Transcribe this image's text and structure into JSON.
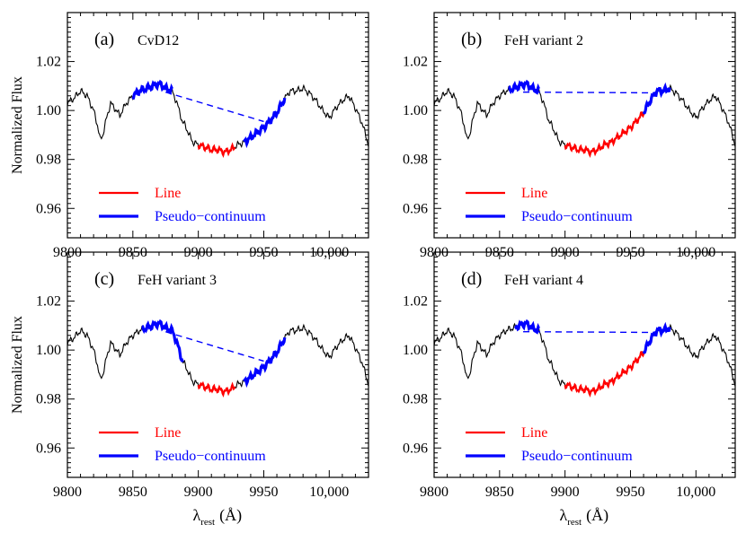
{
  "figure": {
    "xlabel_symbol": "λ",
    "xlabel_sub": "rest",
    "xlabel_unit": "(Å)",
    "ylabel": "Normalized  Flux",
    "colors": {
      "spectrum": "#000000",
      "line": "#ff0000",
      "pseudo_continuum": "#0000ff",
      "continuum_fit": "#0000ff"
    },
    "legend": {
      "line_label": "Line",
      "pseudo_label": "Pseudo−continuum"
    }
  },
  "chart_data": [
    {
      "panel_label": "(a)",
      "title": "CvD12",
      "type": "line",
      "xlim": [
        9800,
        10030
      ],
      "ylim": [
        0.948,
        1.04
      ],
      "xticks": [
        9800,
        9850,
        9900,
        9950,
        10000
      ],
      "xticklabels": [
        "9800",
        "9850",
        "9900",
        "9950",
        "10,000"
      ],
      "yticks": [
        0.96,
        0.98,
        1.0,
        1.02
      ],
      "yticklabels": [
        "0.96",
        "0.98",
        "1.00",
        "1.02"
      ],
      "line_region": [
        9900,
        9928
      ],
      "pseudo_continuum_regions": [
        [
          9850,
          9880
        ],
        [
          9935,
          9966
        ]
      ],
      "continuum_fit": {
        "x": [
          9875,
          9950
        ],
        "y": [
          1.0075,
          0.9955
        ]
      },
      "legend": [
        "Line",
        "Pseudo−continuum"
      ]
    },
    {
      "panel_label": "(b)",
      "title": "FeH variant 2",
      "type": "line",
      "xlim": [
        9800,
        10030
      ],
      "ylim": [
        0.948,
        1.04
      ],
      "xticks": [
        9800,
        9850,
        9900,
        9950,
        10000
      ],
      "xticklabels": [
        "9800",
        "9850",
        "9900",
        "9950",
        "10,000"
      ],
      "yticks": [
        0.96,
        0.98,
        1.0,
        1.02
      ],
      "yticklabels": [
        "0.96",
        "0.98",
        "1.00",
        "1.02"
      ],
      "line_region": [
        9900,
        9960
      ],
      "pseudo_continuum_regions": [
        [
          9857,
          9880
        ],
        [
          9960,
          9980
        ]
      ],
      "continuum_fit": {
        "x": [
          9868,
          9970
        ],
        "y": [
          1.0075,
          1.0072
        ]
      },
      "legend": [
        "Line",
        "Pseudo−continuum"
      ]
    },
    {
      "panel_label": "(c)",
      "title": "FeH variant 3",
      "type": "line",
      "xlim": [
        9800,
        10030
      ],
      "ylim": [
        0.948,
        1.04
      ],
      "xticks": [
        9800,
        9850,
        9900,
        9950,
        10000
      ],
      "xticklabels": [
        "9800",
        "9850",
        "9900",
        "9950",
        "10,000"
      ],
      "yticks": [
        0.96,
        0.98,
        1.0,
        1.02
      ],
      "yticklabels": [
        "0.96",
        "0.98",
        "1.00",
        "1.02"
      ],
      "line_region": [
        9900,
        9928
      ],
      "pseudo_continuum_regions": [
        [
          9857,
          9888
        ],
        [
          9935,
          9966
        ]
      ],
      "continuum_fit": {
        "x": [
          9875,
          9950
        ],
        "y": [
          1.0075,
          0.9955
        ]
      },
      "legend": [
        "Line",
        "Pseudo−continuum"
      ]
    },
    {
      "panel_label": "(d)",
      "title": "FeH variant 4",
      "type": "line",
      "xlim": [
        9800,
        10030
      ],
      "ylim": [
        0.948,
        1.04
      ],
      "xticks": [
        9800,
        9850,
        9900,
        9950,
        10000
      ],
      "xticklabels": [
        "9800",
        "9850",
        "9900",
        "9950",
        "10,000"
      ],
      "yticks": [
        0.96,
        0.98,
        1.0,
        1.02
      ],
      "yticklabels": [
        "0.96",
        "0.98",
        "1.00",
        "1.02"
      ],
      "line_region": [
        9900,
        9960
      ],
      "pseudo_continuum_regions": [
        [
          9862,
          9880
        ],
        [
          9960,
          9980
        ]
      ],
      "continuum_fit": {
        "x": [
          9868,
          9970
        ],
        "y": [
          1.0075,
          1.0072
        ]
      },
      "legend": [
        "Line",
        "Pseudo−continuum"
      ]
    }
  ],
  "spectrum": {
    "x": [
      9800,
      9805,
      9810,
      9815,
      9820,
      9823,
      9825,
      9827,
      9830,
      9833,
      9836,
      9840,
      9845,
      9850,
      9855,
      9860,
      9865,
      9870,
      9875,
      9880,
      9883,
      9886,
      9888,
      9890,
      9893,
      9896,
      9900,
      9905,
      9910,
      9915,
      9920,
      9925,
      9930,
      9935,
      9940,
      9945,
      9950,
      9955,
      9960,
      9965,
      9970,
      9975,
      9980,
      9985,
      9990,
      9995,
      10000,
      10005,
      10010,
      10015,
      10020,
      10025,
      10030
    ],
    "y": [
      1.003,
      1.005,
      1.008,
      1.006,
      1.0,
      0.994,
      0.988,
      0.99,
      0.997,
      1.003,
      1.001,
      0.998,
      1.003,
      1.006,
      1.008,
      1.009,
      1.01,
      1.011,
      1.009,
      1.008,
      1.004,
      0.999,
      0.995,
      0.994,
      0.99,
      0.987,
      0.986,
      0.985,
      0.984,
      0.984,
      0.983,
      0.984,
      0.986,
      0.987,
      0.989,
      0.991,
      0.993,
      0.996,
      0.999,
      1.004,
      1.008,
      1.008,
      1.009,
      1.007,
      1.004,
      1.0,
      0.997,
      1.001,
      1.004,
      1.006,
      1.001,
      0.995,
      0.986
    ]
  }
}
